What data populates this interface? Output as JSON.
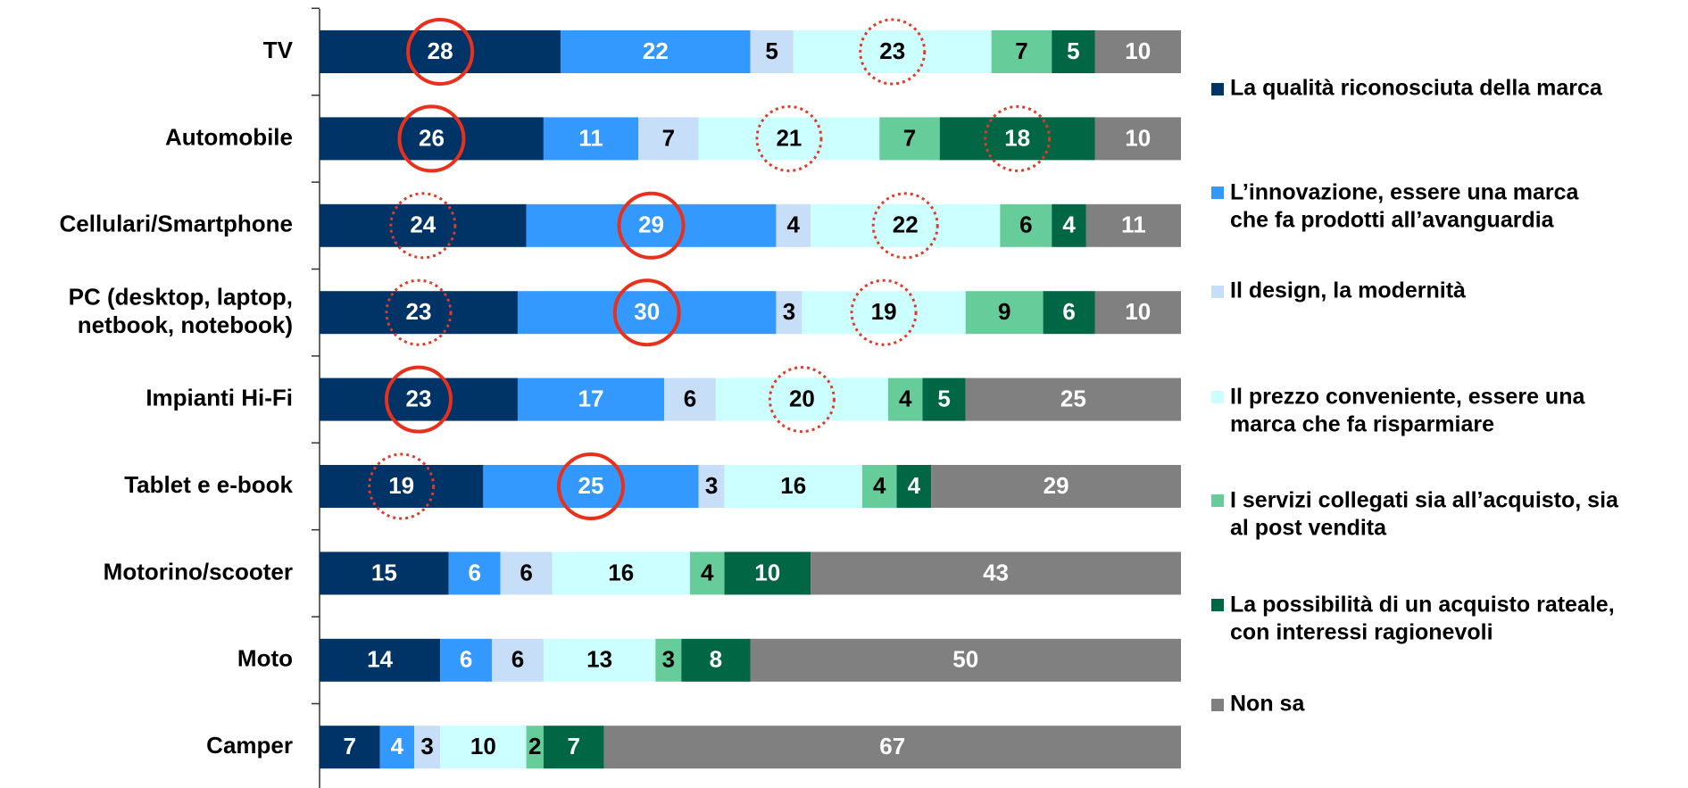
{
  "chart_data": {
    "type": "stacked-barh",
    "categories": [
      "TV",
      "Automobile",
      "Cellulari/Smartphone",
      "PC (desktop, laptop,\nnetbook, notebook)",
      "Impianti Hi-Fi",
      "Tablet e e-book",
      "Motorino/scooter",
      "Moto",
      "Camper"
    ],
    "xlim": [
      0,
      100
    ],
    "series": [
      {
        "name": "La qualità riconosciuta della marca",
        "color": "#003366",
        "values": [
          28,
          26,
          24,
          23,
          23,
          19,
          15,
          14,
          7
        ]
      },
      {
        "name": "L’innovazione, essere una marca\nche fa prodotti all’avanguardia",
        "color": "#3399ff",
        "values": [
          22,
          11,
          29,
          30,
          17,
          25,
          6,
          6,
          4
        ]
      },
      {
        "name": "Il design, la modernità",
        "color": "#c6def7",
        "values": [
          5,
          7,
          4,
          3,
          6,
          3,
          6,
          6,
          3
        ]
      },
      {
        "name": "Il prezzo conveniente, essere una\nmarca che fa risparmiare",
        "color": "#ccffff",
        "values": [
          23,
          21,
          22,
          19,
          20,
          16,
          16,
          13,
          10
        ]
      },
      {
        "name": "I servizi collegati sia all’acquisto, sia\nal post vendita",
        "color": "#66cc99",
        "values": [
          7,
          7,
          6,
          9,
          4,
          4,
          4,
          3,
          2
        ]
      },
      {
        "name": "La possibilità di un acquisto rateale,\ncon interessi ragionevoli",
        "color": "#006644",
        "values": [
          5,
          18,
          4,
          6,
          5,
          4,
          10,
          8,
          7
        ]
      },
      {
        "name": "Non sa",
        "color": "#808080",
        "values": [
          10,
          10,
          11,
          10,
          25,
          29,
          43,
          50,
          67
        ]
      }
    ],
    "legend": "right",
    "circles": [
      {
        "series": 0,
        "category": 0,
        "style": "solid"
      },
      {
        "series": 3,
        "category": 0,
        "style": "dotted"
      },
      {
        "series": 0,
        "category": 1,
        "style": "solid"
      },
      {
        "series": 3,
        "category": 1,
        "style": "dotted"
      },
      {
        "series": 5,
        "category": 1,
        "style": "dotted"
      },
      {
        "series": 0,
        "category": 2,
        "style": "dotted"
      },
      {
        "series": 1,
        "category": 2,
        "style": "solid"
      },
      {
        "series": 3,
        "category": 2,
        "style": "dotted"
      },
      {
        "series": 0,
        "category": 3,
        "style": "dotted"
      },
      {
        "series": 1,
        "category": 3,
        "style": "solid"
      },
      {
        "series": 3,
        "category": 3,
        "style": "dotted"
      },
      {
        "series": 0,
        "category": 4,
        "style": "solid"
      },
      {
        "series": 3,
        "category": 4,
        "style": "dotted"
      },
      {
        "series": 0,
        "category": 5,
        "style": "dotted"
      },
      {
        "series": 1,
        "category": 5,
        "style": "solid"
      }
    ]
  }
}
